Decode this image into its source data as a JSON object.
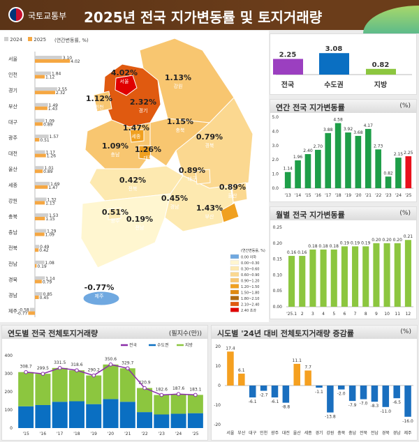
{
  "header": {
    "org": "국토교통부",
    "title": "2025년 전국 지가변동률 및 토지거래량"
  },
  "colors": {
    "y2024": "#cfcfcf",
    "y2025": "#f5a742",
    "national": "#9b3fc0",
    "capital": "#0a6fc2",
    "local": "#8cc63f",
    "annual": "#1e9e48",
    "annual_current": "#e8121c",
    "monthly": "#8cc63f",
    "increase": "#f5a020",
    "decrease": "#1a6fbf",
    "line": "#8a2da8"
  },
  "regional": {
    "legend": [
      "2024",
      "2025"
    ],
    "unit": "(연간변동률, %)",
    "regions": [
      "서울",
      "인천",
      "경기",
      "부산",
      "대구",
      "광주",
      "대전",
      "울산",
      "세종",
      "강원",
      "충북",
      "충남",
      "전북",
      "전남",
      "경북",
      "경남",
      "제주"
    ],
    "y2024": [
      3.1,
      1.84,
      2.55,
      1.49,
      1.09,
      1.57,
      1.17,
      1.01,
      1.69,
      1.32,
      1.53,
      1.29,
      0.49,
      1.08,
      1.14,
      0.85,
      -0.58
    ],
    "y2025": [
      4.02,
      1.12,
      2.32,
      1.43,
      0.89,
      0.51,
      1.26,
      0.89,
      1.47,
      1.13,
      1.15,
      1.09,
      0.42,
      0.19,
      0.79,
      0.45,
      -0.77
    ]
  },
  "map": {
    "legend_title": "(연간변동률, %)",
    "legend": [
      {
        "label": "0.00 이하",
        "color": "#6fa8e0"
      },
      {
        "label": "0.00~0.30",
        "color": "#fff6d0"
      },
      {
        "label": "0.30~0.60",
        "color": "#fde9b0"
      },
      {
        "label": "0.60~0.90",
        "color": "#fbd890"
      },
      {
        "label": "0.90~1.20",
        "color": "#f8c670"
      },
      {
        "label": "1.20~1.50",
        "color": "#f0a020"
      },
      {
        "label": "1.50~1.80",
        "color": "#e08a10"
      },
      {
        "label": "1.80~2.10",
        "color": "#b06a10"
      },
      {
        "label": "2.10~2.40",
        "color": "#e05a10"
      },
      {
        "label": "2.40 초과",
        "color": "#e00000"
      }
    ],
    "labels": [
      {
        "region": "서울",
        "value": "4.02"
      },
      {
        "region": "인천",
        "value": "1.12"
      },
      {
        "region": "경기",
        "value": "2.32"
      },
      {
        "region": "강원",
        "value": "1.13"
      },
      {
        "region": "충북",
        "value": "1.15"
      },
      {
        "region": "세종",
        "value": "1.47"
      },
      {
        "region": "충남",
        "value": "1.09"
      },
      {
        "region": "대전",
        "value": "1.26"
      },
      {
        "region": "경북",
        "value": "0.79"
      },
      {
        "region": "대구",
        "value": "0.89"
      },
      {
        "region": "전북",
        "value": "0.42"
      },
      {
        "region": "경남",
        "value": "0.45"
      },
      {
        "region": "울산",
        "value": "0.89"
      },
      {
        "region": "부산",
        "value": "1.43"
      },
      {
        "region": "광주",
        "value": "0.51"
      },
      {
        "region": "전남",
        "value": "0.19"
      },
      {
        "region": "제주",
        "value": "-0.77"
      }
    ]
  },
  "chart_data": [
    {
      "type": "bar",
      "title": "",
      "categories": [
        "전국",
        "수도권",
        "지방"
      ],
      "values": [
        2.25,
        3.08,
        0.82
      ]
    },
    {
      "type": "bar",
      "title": "연간 전국 지가변동률",
      "unit": "(%)",
      "categories": [
        "'13",
        "'14",
        "'15",
        "'16",
        "'17",
        "'18",
        "'19",
        "'20",
        "'21",
        "'22",
        "'23",
        "'24",
        "'25"
      ],
      "values": [
        1.14,
        1.96,
        2.4,
        2.7,
        3.88,
        4.58,
        3.92,
        3.68,
        4.17,
        2.73,
        0.82,
        2.15,
        2.25
      ],
      "ylim": [
        0,
        5
      ],
      "yticks": [
        "0.0",
        "1.0",
        "2.0",
        "3.0",
        "4.0",
        "5.0"
      ]
    },
    {
      "type": "bar",
      "title": "월별 전국 지가변동률",
      "unit": "(%)",
      "categories": [
        "'25.1",
        "2",
        "3",
        "4",
        "5",
        "6",
        "7",
        "8",
        "9",
        "10",
        "11",
        "12"
      ],
      "values": [
        0.16,
        0.16,
        0.18,
        0.18,
        0.18,
        0.19,
        0.19,
        0.19,
        0.2,
        0.2,
        0.2,
        0.21
      ],
      "ylim": [
        0,
        0.25
      ],
      "yticks": [
        "0.00",
        "0.05",
        "0.10",
        "0.15",
        "0.20",
        "0.25"
      ]
    },
    {
      "type": "bar",
      "title": "연도별 전국 전체토지거래량",
      "unit": "(필지수(만))",
      "categories": [
        "'15",
        "'16",
        "'17",
        "'18",
        "'19",
        "'20",
        "'21",
        "'22",
        "'23",
        "'24",
        "'25"
      ],
      "series": [
        {
          "name": "수도권",
          "values": [
            120,
            127,
            145,
            148,
            132,
            160,
            145,
            88,
            75,
            79,
            82
          ]
        },
        {
          "name": "지방",
          "values": [
            188.7,
            172.5,
            186.5,
            170.6,
            158.2,
            190.6,
            184.7,
            132.9,
            107.6,
            108.6,
            101.1
          ]
        },
        {
          "name": "전국",
          "type": "line",
          "values": [
            308.7,
            299.5,
            331.5,
            318.6,
            290.2,
            350.6,
            329.7,
            220.9,
            182.6,
            187.6,
            183.1
          ]
        }
      ],
      "ylim": [
        0,
        400
      ],
      "yticks": [
        "0",
        "100",
        "200",
        "300",
        "400"
      ],
      "legend": "top-right"
    },
    {
      "type": "bar",
      "title": "시도별 '24년 대비 전체토지거래량 증감률",
      "unit": "(%)",
      "categories": [
        "서울",
        "부산",
        "대구",
        "인천",
        "광주",
        "대전",
        "울산",
        "세종",
        "경기",
        "강원",
        "충북",
        "충남",
        "전북",
        "전남",
        "경북",
        "경남",
        "제주"
      ],
      "values": [
        17.4,
        6.1,
        -6.1,
        -2.7,
        -6.1,
        -8.8,
        11.1,
        7.7,
        -1.1,
        -13.8,
        -2.0,
        -7.9,
        -7.0,
        -8.3,
        -11.0,
        -6.5,
        -16.0
      ],
      "ylim": [
        -20,
        20
      ],
      "yticks": [
        "-20",
        "-10",
        "0",
        "10",
        "20"
      ]
    }
  ]
}
